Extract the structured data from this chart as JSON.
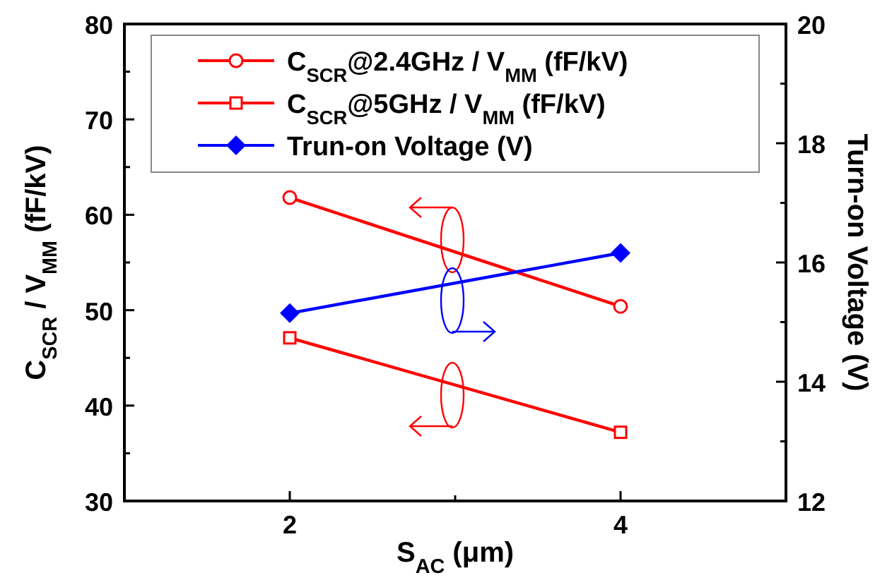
{
  "chart_data": {
    "type": "line",
    "xlabel": "S$_{AC}$ (μm)",
    "ylabel": "C$_{SCR}$ / V$_{MM}$ (fF/kV)",
    "y2label": "Turn-on Voltage (V)",
    "x": [
      2,
      4
    ],
    "xlim": [
      1,
      5
    ],
    "xticks": [
      2,
      {
        "value": 3,
        "label": null
      },
      4
    ],
    "ylim": [
      30,
      80
    ],
    "yticks": [
      30,
      {
        "value": 35,
        "label": null
      },
      40,
      {
        "value": 45,
        "label": null
      },
      50,
      {
        "value": 55,
        "label": null
      },
      60,
      {
        "value": 65,
        "label": null
      },
      70,
      {
        "value": 75,
        "label": null
      },
      80
    ],
    "y2lim": [
      12,
      20
    ],
    "y2ticks": [
      12,
      {
        "value": 13,
        "label": null
      },
      14,
      {
        "value": 15,
        "label": null
      },
      16,
      {
        "value": 17,
        "label": null
      },
      18,
      {
        "value": 19,
        "label": null
      },
      20
    ],
    "legend": "top",
    "grid": false,
    "series": [
      {
        "name": "C$_{SCR}$@2.4GHz / V$_{MM}$ (fF/kV)",
        "color": "#ff0000",
        "values": [
          61.8,
          50.4
        ],
        "marker": "circle"
      },
      {
        "name": "C$_{SCR}$@5GHz / V$_{MM}$ (fF/kV)",
        "color": "#ff0000",
        "values": [
          47.1,
          37.2
        ],
        "marker": "square"
      },
      {
        "name": "Trun-on Voltage (V)",
        "color": "#0000ff",
        "values": [
          15.15,
          16.16
        ],
        "marker": "diamond",
        "axis": "y2"
      }
    ]
  }
}
